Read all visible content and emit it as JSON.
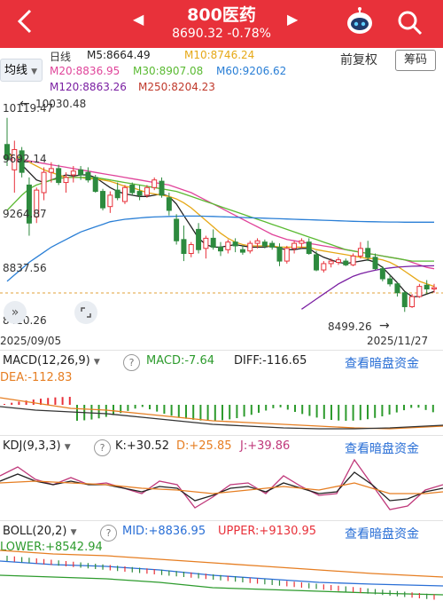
{
  "header": {
    "title": "800医药",
    "price_line": "8690.32 -0.78%",
    "prev_symbol": "◀",
    "next_symbol": "▶",
    "back_icon": "chevron-left-icon",
    "robot_icon": "robot-icon",
    "search_icon": "search-icon",
    "bg_color": "#e8313a"
  },
  "toolbar": {
    "indicator_button": "均线",
    "period": "日线",
    "fuquan": "前复权",
    "chip": "筹码"
  },
  "ma_legend": {
    "ma5": "M5:8664.49",
    "ma10": "M10:8746.24",
    "ma20": "M20:8836.95",
    "ma30": "M30:8907.08",
    "ma60": "M60:9206.62",
    "ma120": "M120:8863.26",
    "ma250": "M250:8204.23"
  },
  "main_chart": {
    "y_labels": [
      "10119.47",
      "9692.14",
      "9264.87",
      "8837.56",
      "8410.26"
    ],
    "high_marker": "10030.48",
    "low_marker": "8499.26",
    "date_start": "2025/09/05",
    "date_end": "2025/11/27"
  },
  "chart_data": {
    "type": "candlestick",
    "ylim": [
      8410.26,
      10119.47
    ],
    "candles": [
      {
        "o": 9820,
        "h": 10030,
        "l": 9650,
        "c": 9700
      },
      {
        "o": 9620,
        "h": 9850,
        "l": 9440,
        "c": 9780
      },
      {
        "o": 9770,
        "h": 9800,
        "l": 9560,
        "c": 9600
      },
      {
        "o": 9500,
        "h": 9560,
        "l": 9100,
        "c": 9200
      },
      {
        "o": 9250,
        "h": 9480,
        "l": 9200,
        "c": 9460
      },
      {
        "o": 9440,
        "h": 9640,
        "l": 9380,
        "c": 9600
      },
      {
        "o": 9600,
        "h": 9680,
        "l": 9520,
        "c": 9630
      },
      {
        "o": 9630,
        "h": 9660,
        "l": 9500,
        "c": 9520
      },
      {
        "o": 9520,
        "h": 9600,
        "l": 9440,
        "c": 9560
      },
      {
        "o": 9580,
        "h": 9650,
        "l": 9520,
        "c": 9610
      },
      {
        "o": 9620,
        "h": 9650,
        "l": 9540,
        "c": 9580
      },
      {
        "o": 9600,
        "h": 9640,
        "l": 9520,
        "c": 9540
      },
      {
        "o": 9560,
        "h": 9580,
        "l": 9440,
        "c": 9450
      },
      {
        "o": 9450,
        "h": 9470,
        "l": 9300,
        "c": 9320
      },
      {
        "o": 9330,
        "h": 9450,
        "l": 9280,
        "c": 9420
      },
      {
        "o": 9460,
        "h": 9520,
        "l": 9380,
        "c": 9400
      },
      {
        "o": 9370,
        "h": 9500,
        "l": 9350,
        "c": 9480
      },
      {
        "o": 9500,
        "h": 9520,
        "l": 9420,
        "c": 9440
      },
      {
        "o": 9450,
        "h": 9500,
        "l": 9380,
        "c": 9420
      },
      {
        "o": 9420,
        "h": 9500,
        "l": 9400,
        "c": 9480
      },
      {
        "o": 9480,
        "h": 9560,
        "l": 9460,
        "c": 9540
      },
      {
        "o": 9530,
        "h": 9560,
        "l": 9400,
        "c": 9420
      },
      {
        "o": 9400,
        "h": 9440,
        "l": 9260,
        "c": 9300
      },
      {
        "o": 9230,
        "h": 9270,
        "l": 9030,
        "c": 9060
      },
      {
        "o": 9070,
        "h": 9180,
        "l": 8900,
        "c": 8960
      },
      {
        "o": 8960,
        "h": 9050,
        "l": 8930,
        "c": 9030
      },
      {
        "o": 9150,
        "h": 9200,
        "l": 8960,
        "c": 8990
      },
      {
        "o": 9000,
        "h": 9100,
        "l": 8920,
        "c": 9080
      },
      {
        "o": 9080,
        "h": 9150,
        "l": 8990,
        "c": 9010
      },
      {
        "o": 9010,
        "h": 9050,
        "l": 8940,
        "c": 8980
      },
      {
        "o": 8990,
        "h": 9070,
        "l": 8960,
        "c": 9050
      },
      {
        "o": 9050,
        "h": 9080,
        "l": 8970,
        "c": 9020
      },
      {
        "o": 8990,
        "h": 9020,
        "l": 8950,
        "c": 8970
      },
      {
        "o": 8980,
        "h": 9060,
        "l": 8960,
        "c": 9040
      },
      {
        "o": 9040,
        "h": 9080,
        "l": 9000,
        "c": 9060
      },
      {
        "o": 9050,
        "h": 9070,
        "l": 9000,
        "c": 9020
      },
      {
        "o": 9040,
        "h": 9060,
        "l": 8990,
        "c": 9010
      },
      {
        "o": 9010,
        "h": 9040,
        "l": 8860,
        "c": 8900
      },
      {
        "o": 8900,
        "h": 9020,
        "l": 8880,
        "c": 9000
      },
      {
        "o": 9000,
        "h": 9060,
        "l": 8960,
        "c": 9040
      },
      {
        "o": 9040,
        "h": 9080,
        "l": 9000,
        "c": 9060
      },
      {
        "o": 9050,
        "h": 9080,
        "l": 8950,
        "c": 8960
      },
      {
        "o": 8950,
        "h": 8980,
        "l": 8820,
        "c": 8830
      },
      {
        "o": 8830,
        "h": 8900,
        "l": 8810,
        "c": 8880
      },
      {
        "o": 8880,
        "h": 8920,
        "l": 8850,
        "c": 8900
      },
      {
        "o": 8890,
        "h": 8930,
        "l": 8870,
        "c": 8910
      },
      {
        "o": 8900,
        "h": 8920,
        "l": 8860,
        "c": 8870
      },
      {
        "o": 8870,
        "h": 8960,
        "l": 8860,
        "c": 8940
      },
      {
        "o": 8940,
        "h": 9050,
        "l": 8920,
        "c": 9000
      },
      {
        "o": 9000,
        "h": 9060,
        "l": 8900,
        "c": 8930
      },
      {
        "o": 8930,
        "h": 8960,
        "l": 8830,
        "c": 8840
      },
      {
        "o": 8840,
        "h": 8860,
        "l": 8740,
        "c": 8760
      },
      {
        "o": 8760,
        "h": 8790,
        "l": 8700,
        "c": 8720
      },
      {
        "o": 8720,
        "h": 8730,
        "l": 8620,
        "c": 8650
      },
      {
        "o": 8650,
        "h": 8660,
        "l": 8499,
        "c": 8540
      },
      {
        "o": 8540,
        "h": 8640,
        "l": 8530,
        "c": 8620
      },
      {
        "o": 8620,
        "h": 8720,
        "l": 8610,
        "c": 8700
      },
      {
        "o": 8710,
        "h": 8750,
        "l": 8640,
        "c": 8680
      },
      {
        "o": 8680,
        "h": 8720,
        "l": 8650,
        "c": 8690
      }
    ],
    "lines": [
      {
        "name": "M5",
        "color": "#222222",
        "values": [
          9760,
          9720,
          9660,
          9600,
          9540,
          9520,
          9540,
          9560,
          9580,
          9570,
          9580,
          9580,
          9560,
          9520,
          9480,
          9450,
          9430,
          9420,
          9410,
          9410,
          9420,
          9430,
          9410,
          9350,
          9260,
          9170,
          9080,
          9030,
          9010,
          9010,
          9020,
          9030,
          9020,
          9010,
          9010,
          9010,
          9020,
          9000,
          8990,
          8990,
          9000,
          9000,
          8960,
          8930,
          8910,
          8890,
          8880,
          8890,
          8900,
          8910,
          8890,
          8850,
          8790,
          8730,
          8660,
          8620,
          8620,
          8640,
          8660
        ]
      },
      {
        "name": "M10",
        "color": "#e6a817",
        "values": [
          9740,
          9730,
          9710,
          9680,
          9650,
          9620,
          9600,
          9580,
          9560,
          9560,
          9560,
          9550,
          9550,
          9540,
          9530,
          9510,
          9490,
          9480,
          9460,
          9440,
          9430,
          9420,
          9410,
          9390,
          9360,
          9320,
          9270,
          9220,
          9170,
          9120,
          9080,
          9050,
          9030,
          9020,
          9020,
          9020,
          9020,
          9010,
          9010,
          9010,
          9010,
          9010,
          8990,
          8980,
          8970,
          8960,
          8950,
          8940,
          8930,
          8920,
          8920,
          8910,
          8890,
          8860,
          8820,
          8780,
          8740,
          8720,
          8700
        ]
      },
      {
        "name": "M20",
        "color": "#e0449a",
        "values": [
          9700,
          9700,
          9700,
          9690,
          9680,
          9670,
          9660,
          9650,
          9640,
          9630,
          9620,
          9610,
          9600,
          9590,
          9580,
          9570,
          9560,
          9550,
          9540,
          9530,
          9520,
          9510,
          9500,
          9480,
          9460,
          9440,
          9410,
          9380,
          9350,
          9320,
          9290,
          9260,
          9230,
          9200,
          9170,
          9140,
          9110,
          9090,
          9070,
          9060,
          9050,
          9040,
          9030,
          9020,
          9010,
          9000,
          8990,
          8980,
          8970,
          8960,
          8950,
          8940,
          8930,
          8920,
          8910,
          8890,
          8870,
          8850,
          8840
        ]
      },
      {
        "name": "M30",
        "color": "#5aba32",
        "values": [
          9300,
          9360,
          9420,
          9470,
          9500,
          9520,
          9540,
          9550,
          9560,
          9560,
          9560,
          9560,
          9560,
          9550,
          9540,
          9530,
          9520,
          9510,
          9500,
          9490,
          9480,
          9470,
          9460,
          9450,
          9430,
          9410,
          9390,
          9370,
          9350,
          9330,
          9310,
          9290,
          9270,
          9250,
          9230,
          9210,
          9190,
          9170,
          9150,
          9130,
          9110,
          9090,
          9070,
          9050,
          9030,
          9010,
          8990,
          8980,
          8970,
          8960,
          8950,
          8940,
          8930,
          8920,
          8910,
          8900,
          8900,
          8900,
          8900
        ]
      },
      {
        "name": "M60",
        "color": "#2a7fd6",
        "values": [
          8740,
          8790,
          8840,
          8890,
          8930,
          8970,
          9010,
          9040,
          9070,
          9100,
          9130,
          9150,
          9170,
          9190,
          9210,
          9220,
          9230,
          9235,
          9240,
          9245,
          9248,
          9250,
          9252,
          9254,
          9255,
          9255,
          9255,
          9254,
          9252,
          9250,
          9248,
          9246,
          9244,
          9242,
          9240,
          9238,
          9236,
          9234,
          9232,
          9230,
          9228,
          9226,
          9224,
          9222,
          9220,
          9218,
          9216,
          9214,
          9212,
          9211,
          9210,
          9209,
          9208,
          9208,
          9207,
          9207,
          9207,
          9207,
          9207
        ]
      },
      {
        "name": "M120",
        "color": "#7a1fa2",
        "values": [
          null,
          null,
          null,
          null,
          null,
          null,
          null,
          null,
          null,
          null,
          null,
          null,
          null,
          null,
          null,
          null,
          null,
          null,
          null,
          null,
          null,
          null,
          null,
          null,
          null,
          null,
          null,
          null,
          null,
          null,
          null,
          null,
          null,
          null,
          null,
          null,
          null,
          null,
          null,
          null,
          8520,
          8560,
          8600,
          8640,
          8680,
          8720,
          8750,
          8780,
          8800,
          8815,
          8828,
          8838,
          8846,
          8852,
          8856,
          8859,
          8861,
          8862,
          8863
        ]
      }
    ]
  },
  "macd": {
    "name": "MACD(12,26,9)",
    "value": "MACD:-7.64",
    "diff": "DIFF:-116.65",
    "dea": "DEA:-112.83",
    "link": "查看暗盘资金"
  },
  "kdj": {
    "name": "KDJ(9,3,3)",
    "k": "K:+30.52",
    "d": "D:+25.85",
    "j": "J:+39.86",
    "link": "查看暗盘资金"
  },
  "boll": {
    "name": "BOLL(20,2)",
    "mid": "MID:+8836.95",
    "upper": "UPPER:+9130.95",
    "lower": "LOWER:+8542.94",
    "link": "查看暗盘资金"
  }
}
